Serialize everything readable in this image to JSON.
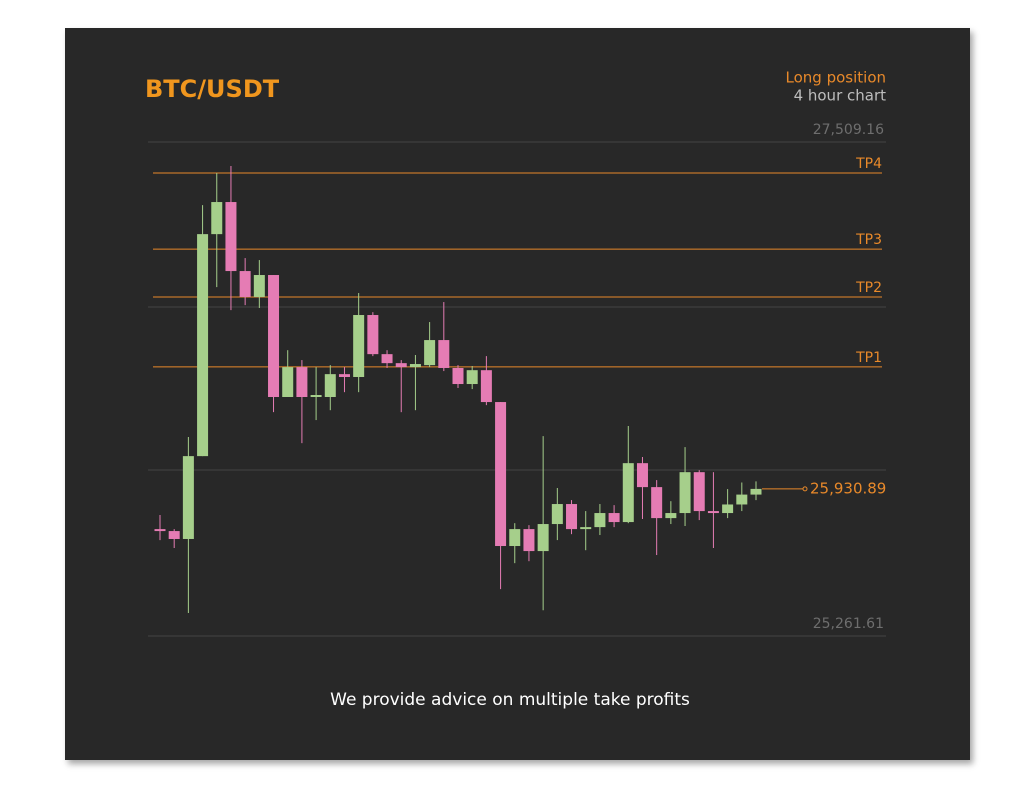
{
  "chart_data": {
    "type": "candlestick",
    "title": "BTC/USDT",
    "subtitle": [
      "Long position",
      "4 hour chart"
    ],
    "caption": "We provide advice on multiple take profits",
    "open": [
      25748,
      25739,
      25703,
      26080,
      27090,
      27236,
      26922,
      26804,
      26904,
      26349,
      26485,
      26349,
      26349,
      26453,
      26440,
      26722,
      26544,
      26503,
      26485,
      26494,
      26608,
      26481,
      26408,
      26471,
      26326,
      25671,
      25748,
      25648,
      25771,
      25862,
      25748,
      25757,
      25821,
      25780,
      26048,
      25939,
      25798,
      25821,
      26007,
      25830,
      25821,
      25860,
      25905
    ],
    "high": [
      25812,
      25748,
      26167,
      27222,
      27368,
      27400,
      26981,
      26972,
      26904,
      26562,
      26517,
      26485,
      26494,
      26485,
      26822,
      26735,
      26562,
      26517,
      26540,
      26690,
      26781,
      26494,
      26490,
      26535,
      26326,
      25775,
      25766,
      26171,
      25935,
      25880,
      25830,
      25862,
      25857,
      26217,
      26076,
      25971,
      25875,
      26121,
      26016,
      26007,
      25930,
      25960,
      25965
    ],
    "low": [
      25698,
      25662,
      25366,
      26080,
      26849,
      26744,
      26767,
      26754,
      26280,
      26349,
      26139,
      26244,
      26289,
      26371,
      26371,
      26535,
      26481,
      26280,
      26289,
      26485,
      26467,
      26390,
      26385,
      26312,
      25475,
      25593,
      25602,
      25379,
      25698,
      25725,
      25652,
      25721,
      25757,
      25775,
      25794,
      25630,
      25771,
      25762,
      25789,
      25662,
      25798,
      25830,
      25880
    ],
    "close": [
      25739,
      25703,
      26080,
      27090,
      27236,
      26922,
      26804,
      26904,
      26349,
      26485,
      26349,
      26358,
      26453,
      26440,
      26722,
      26544,
      26503,
      26485,
      26499,
      26608,
      26481,
      26408,
      26471,
      26326,
      25671,
      25748,
      25648,
      25771,
      25862,
      25748,
      25757,
      25821,
      25780,
      26048,
      25939,
      25798,
      25821,
      26007,
      25830,
      25821,
      25860,
      25905,
      25930.89
    ],
    "close_label": "25,930.89",
    "up_color": "#a6cf8b",
    "down_color": "#e57cb4",
    "level_color": "#e8892a",
    "levels": [
      {
        "label": "TP4",
        "value": 27368
      },
      {
        "label": "TP3",
        "value": 27022
      },
      {
        "label": "TP2",
        "value": 26804
      },
      {
        "label": "TP1",
        "value": 26486
      }
    ],
    "ylim": [
      25261.61,
      27509.16
    ],
    "yticks": [
      {
        "value": 27509.16,
        "label": "27,509.16"
      },
      {
        "value": 25261.61,
        "label": "25,261.61"
      }
    ],
    "grid": true
  }
}
